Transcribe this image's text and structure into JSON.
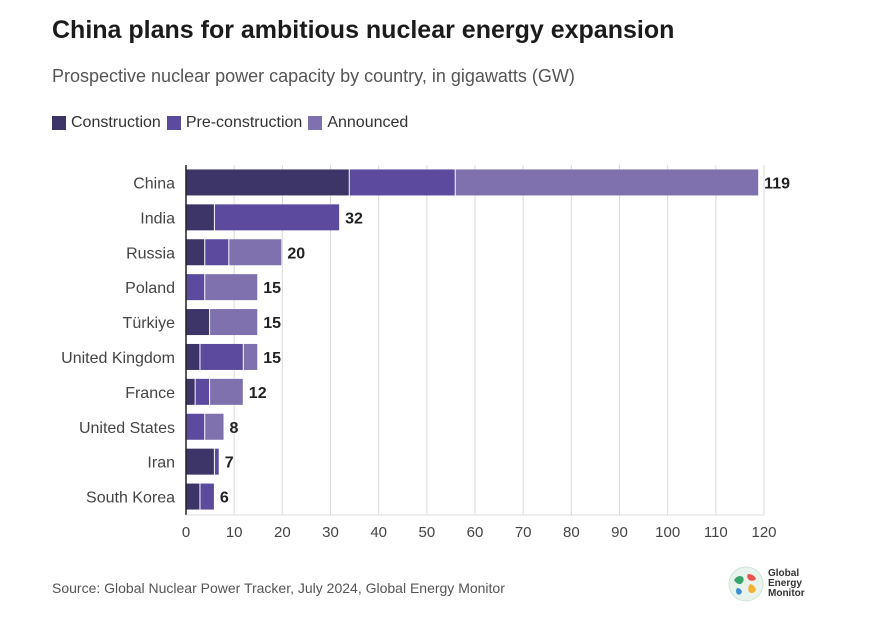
{
  "header": {
    "title": "China plans for ambitious nuclear energy expansion",
    "subtitle": "Prospective nuclear power capacity by country, in gigawatts (GW)"
  },
  "chart_data": {
    "type": "bar",
    "orientation": "horizontal",
    "stacked": true,
    "categories": [
      "China",
      "India",
      "Russia",
      "Poland",
      "Türkiye",
      "United Kingdom",
      "France",
      "United States",
      "Iran",
      "South Korea"
    ],
    "series": [
      {
        "name": "Construction",
        "color": "#3d3568",
        "values": [
          34,
          6,
          4,
          0,
          5,
          3,
          2,
          0,
          6,
          3
        ]
      },
      {
        "name": "Pre-construction",
        "color": "#5b4a9e",
        "values": [
          22,
          26,
          5,
          4,
          0,
          9,
          3,
          4,
          1,
          3
        ]
      },
      {
        "name": "Announced",
        "color": "#7e71ad",
        "values": [
          63,
          0,
          11,
          11,
          10,
          3,
          7,
          4,
          0,
          0
        ]
      }
    ],
    "totals": [
      "119",
      "32",
      "20",
      "15",
      "15",
      "15",
      "12",
      "8",
      "7",
      "6"
    ],
    "xlim": [
      0,
      120
    ],
    "xticks": [
      "0",
      "10",
      "20",
      "30",
      "40",
      "50",
      "60",
      "70",
      "80",
      "90",
      "100",
      "110",
      "120"
    ],
    "grid": "vertical",
    "legend_position": "top-left",
    "xlabel": "",
    "ylabel": ""
  },
  "footer": {
    "source": "Source: Global Nuclear Power Tracker, July 2024, Global Energy Monitor",
    "logo_lines": [
      "Global",
      "Energy",
      "Monitor"
    ],
    "logo_icon": "globe-icon"
  }
}
